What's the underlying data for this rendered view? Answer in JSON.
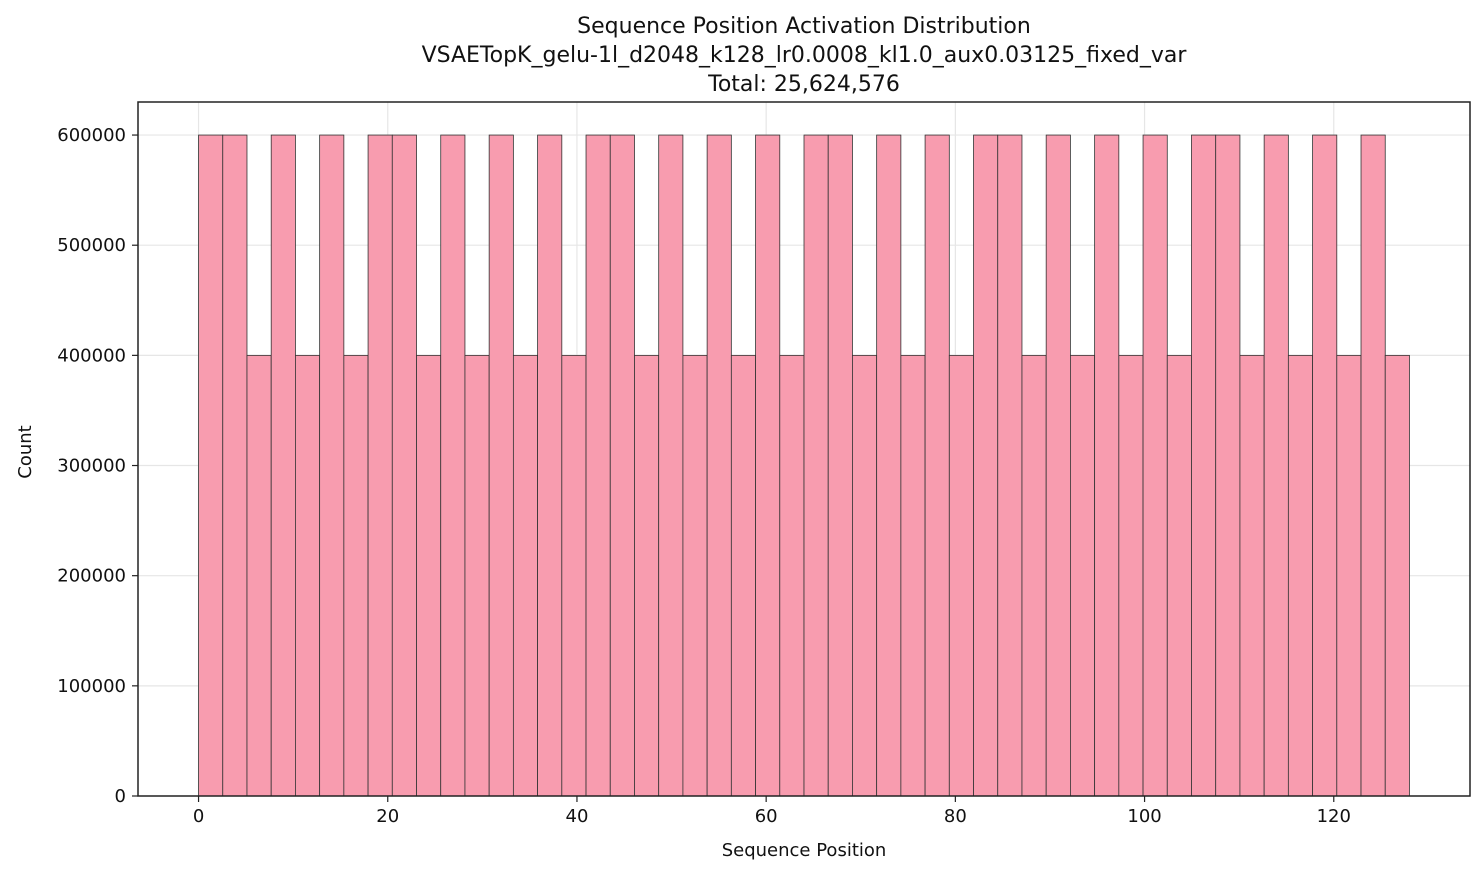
{
  "chart_data": {
    "type": "bar",
    "title": "Sequence Position Activation Distribution",
    "subtitle": "VSAETopK_gelu-1l_d2048_k128_lr0.0008_kl1.0_aux0.03125_fixed_var",
    "total_label": "Total: 25,624,576",
    "xlabel": "Sequence Position",
    "ylabel": "Count",
    "xlim": [
      -6.4,
      134.4
    ],
    "ylim": [
      0,
      630000
    ],
    "x_ticks": [
      0,
      20,
      40,
      60,
      80,
      100,
      120
    ],
    "y_ticks": [
      0,
      100000,
      200000,
      300000,
      400000,
      500000,
      600000
    ],
    "bin_edges": [
      0,
      2.56,
      5.12,
      7.68,
      10.24,
      12.8,
      15.36,
      17.92,
      20.48,
      23.04,
      25.6,
      28.16,
      30.72,
      33.28,
      35.84,
      38.4,
      40.96,
      43.52,
      46.08,
      48.64,
      51.2,
      53.76,
      56.32,
      58.88,
      61.44,
      64,
      66.56,
      69.12,
      71.68,
      74.24,
      76.8,
      79.36,
      81.92,
      84.48,
      87.04,
      89.6,
      92.16,
      94.72,
      97.28,
      99.84,
      102.4,
      104.96,
      107.52,
      110.08,
      112.64,
      115.2,
      117.76,
      120.32,
      122.88,
      125.44,
      128
    ],
    "values": [
      600000,
      600000,
      400000,
      600000,
      400000,
      600000,
      400000,
      600000,
      600000,
      400000,
      600000,
      400000,
      600000,
      400000,
      600000,
      400000,
      600000,
      600000,
      400000,
      600000,
      400000,
      600000,
      400000,
      600000,
      400000,
      600000,
      600000,
      400000,
      600000,
      400000,
      600000,
      400000,
      600000,
      600000,
      400000,
      600000,
      400000,
      600000,
      400000,
      600000,
      400000,
      600000,
      600000,
      400000,
      600000,
      400000,
      600000,
      400000,
      600000,
      400000
    ],
    "bar_color": "#f89caf",
    "edge_color": "#333333",
    "grid": true
  }
}
